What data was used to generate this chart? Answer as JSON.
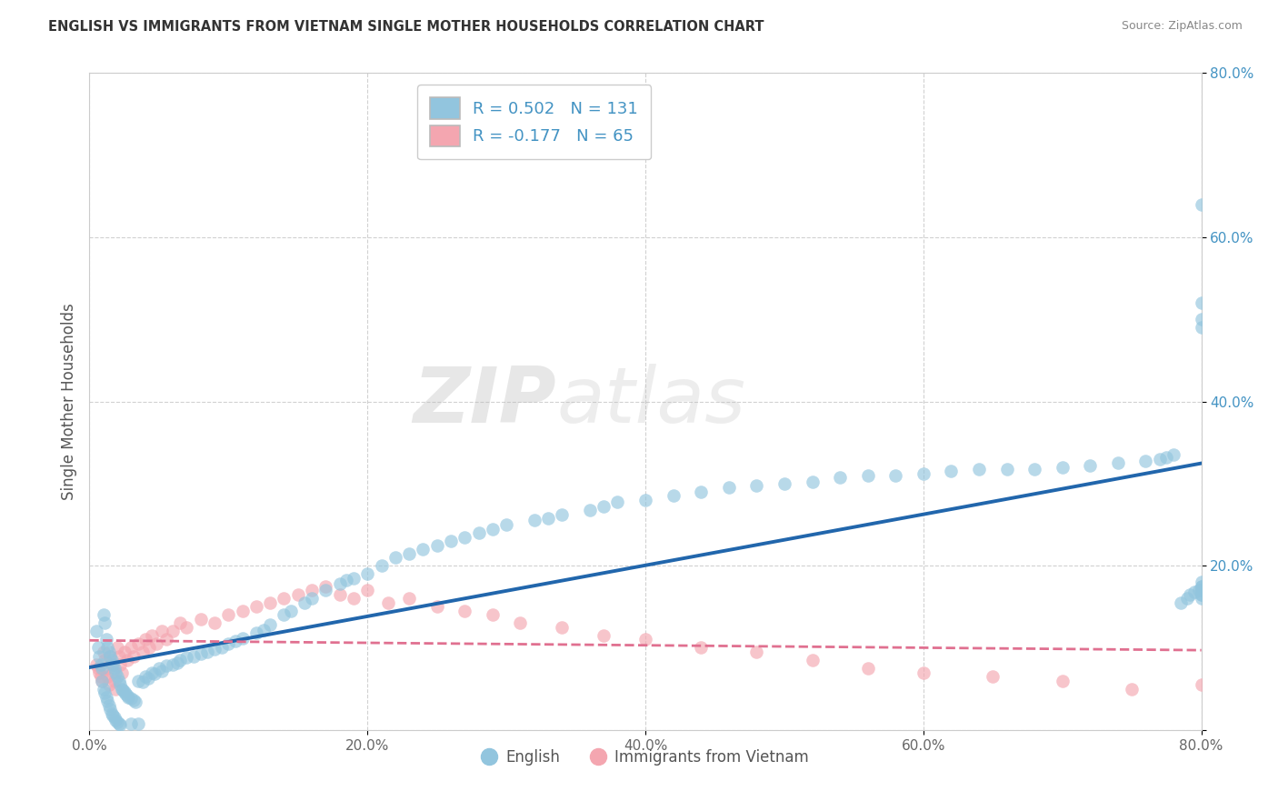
{
  "title": "ENGLISH VS IMMIGRANTS FROM VIETNAM SINGLE MOTHER HOUSEHOLDS CORRELATION CHART",
  "source": "Source: ZipAtlas.com",
  "ylabel": "Single Mother Households",
  "watermark": "ZIPatlas",
  "xlim": [
    0.0,
    0.8
  ],
  "ylim": [
    0.0,
    0.8
  ],
  "xticks": [
    0.0,
    0.2,
    0.4,
    0.6,
    0.8
  ],
  "yticks": [
    0.0,
    0.2,
    0.4,
    0.6,
    0.8
  ],
  "xtick_labels": [
    "0.0%",
    "20.0%",
    "40.0%",
    "60.0%",
    "80.0%"
  ],
  "ytick_labels": [
    "",
    "20.0%",
    "40.0%",
    "60.0%",
    "80.0%"
  ],
  "english_R": 0.502,
  "english_N": 131,
  "vietnam_R": -0.177,
  "vietnam_N": 65,
  "english_color": "#92C5DE",
  "vietnam_color": "#F4A6B0",
  "english_line_color": "#2166AC",
  "vietnam_line_color": "#E07090",
  "legend_labels": [
    "English",
    "Immigrants from Vietnam"
  ],
  "grid_color": "#CCCCCC",
  "background_color": "#FFFFFF",
  "blue_text_color": "#4393C3",
  "english_x": [
    0.005,
    0.006,
    0.007,
    0.008,
    0.009,
    0.009,
    0.01,
    0.01,
    0.011,
    0.011,
    0.012,
    0.012,
    0.013,
    0.013,
    0.014,
    0.014,
    0.015,
    0.015,
    0.016,
    0.016,
    0.017,
    0.017,
    0.018,
    0.018,
    0.019,
    0.019,
    0.02,
    0.02,
    0.021,
    0.021,
    0.022,
    0.022,
    0.023,
    0.024,
    0.025,
    0.026,
    0.027,
    0.028,
    0.03,
    0.03,
    0.032,
    0.033,
    0.035,
    0.035,
    0.038,
    0.04,
    0.042,
    0.045,
    0.047,
    0.05,
    0.052,
    0.055,
    0.06,
    0.063,
    0.065,
    0.07,
    0.075,
    0.08,
    0.085,
    0.09,
    0.095,
    0.1,
    0.105,
    0.11,
    0.12,
    0.125,
    0.13,
    0.14,
    0.145,
    0.155,
    0.16,
    0.17,
    0.18,
    0.185,
    0.19,
    0.2,
    0.21,
    0.22,
    0.23,
    0.24,
    0.25,
    0.26,
    0.27,
    0.28,
    0.29,
    0.3,
    0.32,
    0.33,
    0.34,
    0.36,
    0.37,
    0.38,
    0.4,
    0.42,
    0.44,
    0.46,
    0.48,
    0.5,
    0.52,
    0.54,
    0.56,
    0.58,
    0.6,
    0.62,
    0.64,
    0.66,
    0.68,
    0.7,
    0.72,
    0.74,
    0.76,
    0.77,
    0.775,
    0.78,
    0.785,
    0.79,
    0.792,
    0.795,
    0.798,
    0.8,
    0.8,
    0.8,
    0.8,
    0.8,
    0.8,
    0.8,
    0.8,
    0.8,
    0.8,
    0.8,
    0.8
  ],
  "english_y": [
    0.12,
    0.1,
    0.09,
    0.08,
    0.075,
    0.06,
    0.14,
    0.05,
    0.13,
    0.045,
    0.11,
    0.04,
    0.1,
    0.035,
    0.095,
    0.03,
    0.09,
    0.025,
    0.085,
    0.02,
    0.08,
    0.018,
    0.075,
    0.015,
    0.07,
    0.012,
    0.065,
    0.01,
    0.06,
    0.008,
    0.055,
    0.006,
    0.05,
    0.048,
    0.046,
    0.044,
    0.042,
    0.04,
    0.038,
    0.008,
    0.036,
    0.034,
    0.06,
    0.008,
    0.058,
    0.065,
    0.063,
    0.07,
    0.068,
    0.075,
    0.072,
    0.078,
    0.08,
    0.082,
    0.085,
    0.088,
    0.09,
    0.093,
    0.095,
    0.098,
    0.1,
    0.105,
    0.108,
    0.112,
    0.118,
    0.122,
    0.128,
    0.14,
    0.145,
    0.155,
    0.16,
    0.17,
    0.178,
    0.182,
    0.185,
    0.19,
    0.2,
    0.21,
    0.215,
    0.22,
    0.225,
    0.23,
    0.235,
    0.24,
    0.245,
    0.25,
    0.255,
    0.258,
    0.262,
    0.268,
    0.272,
    0.278,
    0.28,
    0.285,
    0.29,
    0.295,
    0.298,
    0.3,
    0.302,
    0.308,
    0.31,
    0.31,
    0.312,
    0.315,
    0.318,
    0.318,
    0.318,
    0.32,
    0.322,
    0.325,
    0.328,
    0.33,
    0.332,
    0.335,
    0.155,
    0.16,
    0.165,
    0.168,
    0.17,
    0.175,
    0.18,
    0.17,
    0.165,
    0.16,
    0.175,
    0.17,
    0.165,
    0.49,
    0.5,
    0.52,
    0.64
  ],
  "vietnam_x": [
    0.005,
    0.006,
    0.007,
    0.008,
    0.009,
    0.01,
    0.011,
    0.012,
    0.013,
    0.014,
    0.015,
    0.016,
    0.017,
    0.018,
    0.019,
    0.02,
    0.021,
    0.022,
    0.023,
    0.025,
    0.027,
    0.03,
    0.032,
    0.035,
    0.038,
    0.04,
    0.043,
    0.045,
    0.048,
    0.052,
    0.055,
    0.06,
    0.065,
    0.07,
    0.08,
    0.09,
    0.1,
    0.11,
    0.12,
    0.13,
    0.14,
    0.15,
    0.16,
    0.17,
    0.18,
    0.19,
    0.2,
    0.215,
    0.23,
    0.25,
    0.27,
    0.29,
    0.31,
    0.34,
    0.37,
    0.4,
    0.44,
    0.48,
    0.52,
    0.56,
    0.6,
    0.65,
    0.7,
    0.75,
    0.8
  ],
  "vietnam_y": [
    0.08,
    0.075,
    0.07,
    0.065,
    0.06,
    0.095,
    0.085,
    0.075,
    0.065,
    0.055,
    0.09,
    0.08,
    0.07,
    0.06,
    0.05,
    0.1,
    0.09,
    0.08,
    0.07,
    0.095,
    0.085,
    0.1,
    0.09,
    0.105,
    0.095,
    0.11,
    0.1,
    0.115,
    0.105,
    0.12,
    0.11,
    0.12,
    0.13,
    0.125,
    0.135,
    0.13,
    0.14,
    0.145,
    0.15,
    0.155,
    0.16,
    0.165,
    0.17,
    0.175,
    0.165,
    0.16,
    0.17,
    0.155,
    0.16,
    0.15,
    0.145,
    0.14,
    0.13,
    0.125,
    0.115,
    0.11,
    0.1,
    0.095,
    0.085,
    0.075,
    0.07,
    0.065,
    0.06,
    0.05,
    0.055
  ]
}
